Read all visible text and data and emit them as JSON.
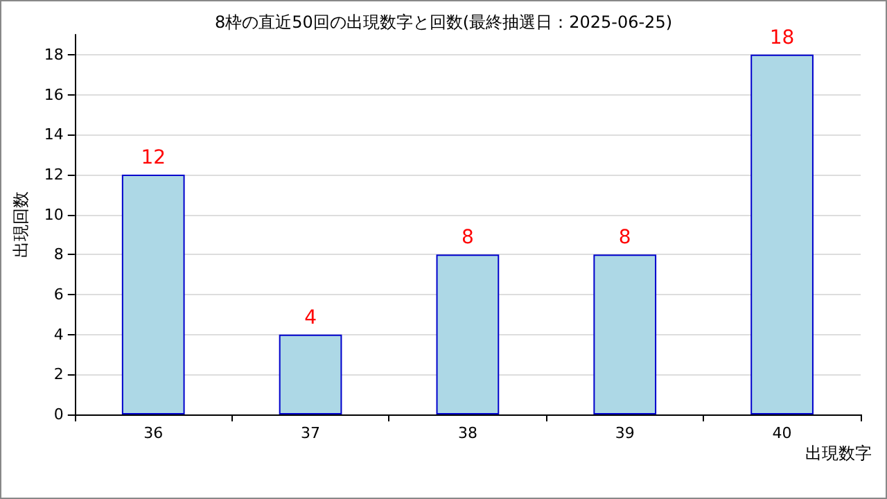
{
  "chart_data": {
    "type": "bar",
    "title": "8枠の直近50回の出現数字と回数(最終抽選日：2025-06-25)",
    "xlabel": "出現数字",
    "ylabel": "出現回数",
    "categories": [
      "36",
      "37",
      "38",
      "39",
      "40"
    ],
    "values": [
      12,
      4,
      8,
      8,
      18
    ],
    "color": "#add8e6",
    "ylim": [
      0,
      19
    ],
    "yticks": [
      0,
      2,
      4,
      6,
      8,
      10,
      12,
      14,
      16,
      18
    ],
    "grid": "y",
    "data_labels": true
  }
}
